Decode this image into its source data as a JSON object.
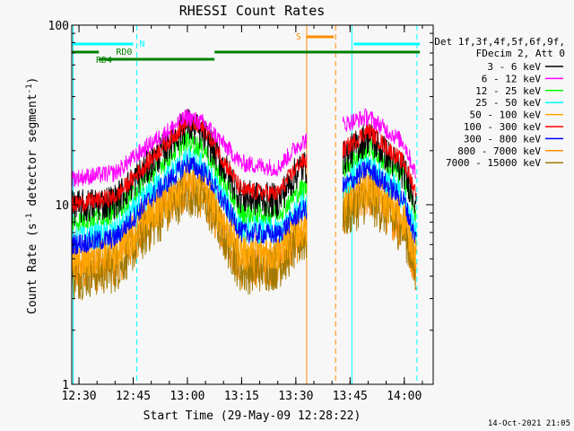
{
  "chart_data": {
    "type": "line",
    "title": "RHESSI Count Rates",
    "xlabel": "Start Time (29-May-09 12:28:22)",
    "ylabel": "Count Rate (s",
    "ylabel_sup1": "-1",
    "ylabel_mid": " detector segment",
    "ylabel_sup2": "-1",
    "ylabel_end": ")",
    "yscale": "log",
    "ylim": [
      1,
      100
    ],
    "xlim": [
      "12:28",
      "14:08"
    ],
    "x_ticks": [
      "12:30",
      "12:45",
      "13:00",
      "13:15",
      "13:30",
      "13:45",
      "14:00"
    ],
    "y_ticks": [
      "1",
      "10",
      "100"
    ],
    "data_gap": [
      "13:33",
      "13:43"
    ],
    "legend_header": [
      "Det 1f,3f,4f,5f,6f,9f,",
      "FDecim 2, Att 0"
    ],
    "legend_placement": "right",
    "series": [
      {
        "name": "3 - 6 keV",
        "color": "#000000",
        "x": [
          "12:28",
          "12:40",
          "12:50",
          "13:00",
          "13:05",
          "13:15",
          "13:25",
          "13:31",
          "13:43",
          "13:50",
          "14:00",
          "14:03"
        ],
        "values": [
          9.5,
          10.5,
          17,
          28,
          24,
          11,
          10.5,
          16,
          18,
          24,
          15,
          11
        ]
      },
      {
        "name": "6 - 12 keV",
        "color": "#ff00ff",
        "x": [
          "12:28",
          "12:40",
          "12:50",
          "13:00",
          "13:05",
          "13:15",
          "13:25",
          "13:31",
          "13:43",
          "13:50",
          "14:00",
          "14:03"
        ],
        "values": [
          14,
          15,
          22,
          31,
          28,
          17,
          16,
          22,
          28,
          31,
          22,
          15
        ]
      },
      {
        "name": "12 - 25 keV",
        "color": "#00ff00",
        "x": [
          "12:28",
          "12:40",
          "12:50",
          "13:00",
          "13:05",
          "13:15",
          "13:25",
          "13:31",
          "13:43",
          "13:50",
          "14:00",
          "14:03"
        ],
        "values": [
          8,
          9,
          15,
          23,
          20,
          9,
          9,
          12,
          16,
          21,
          14,
          9
        ]
      },
      {
        "name": "25 - 50 keV",
        "color": "#00ffff",
        "x": [
          "12:28",
          "12:40",
          "12:50",
          "13:00",
          "13:05",
          "13:15",
          "13:25",
          "13:31",
          "13:43",
          "13:50",
          "14:00",
          "14:03"
        ],
        "values": [
          6.5,
          7,
          12,
          18,
          16,
          7.5,
          7,
          10,
          13,
          17,
          11,
          7
        ]
      },
      {
        "name": "50 - 100 keV",
        "color": "#ffa500",
        "x": [
          "12:28",
          "12:40",
          "12:50",
          "13:00",
          "13:05",
          "13:15",
          "13:25",
          "13:31",
          "13:43",
          "13:50",
          "14:00",
          "14:03"
        ],
        "values": [
          5,
          5.5,
          9,
          14,
          12,
          5.5,
          5.5,
          7.5,
          10,
          13,
          8.5,
          5.5
        ]
      },
      {
        "name": "100 - 300 keV",
        "color": "#ff0000",
        "x": [
          "12:28",
          "12:40",
          "12:50",
          "13:00",
          "13:05",
          "13:15",
          "13:25",
          "13:31",
          "13:43",
          "13:50",
          "14:00",
          "14:03"
        ],
        "values": [
          10,
          11,
          18,
          29,
          26,
          12,
          11.5,
          17,
          20,
          26,
          17,
          12
        ]
      },
      {
        "name": "300 - 800 keV",
        "color": "#0000ff",
        "x": [
          "12:28",
          "12:40",
          "12:50",
          "13:00",
          "13:05",
          "13:15",
          "13:25",
          "13:31",
          "13:43",
          "13:50",
          "14:00",
          "14:03"
        ],
        "values": [
          6,
          6.5,
          11,
          17,
          15,
          7,
          6.8,
          9,
          12.5,
          16,
          10.5,
          6.5
        ]
      },
      {
        "name": "800 - 7000 keV",
        "color": "#ff8c00",
        "x": [
          "12:28",
          "12:40",
          "12:50",
          "13:00",
          "13:05",
          "13:15",
          "13:25",
          "13:31",
          "13:43",
          "13:50",
          "14:00",
          "14:03"
        ],
        "values": [
          4.2,
          4.6,
          8,
          12.5,
          11,
          4.5,
          4.8,
          6.5,
          9,
          11.5,
          7.5,
          4.5
        ]
      },
      {
        "name": "7000 - 15000 keV",
        "color": "#a07800",
        "x": [
          "12:28",
          "12:40",
          "12:50",
          "13:00",
          "13:05",
          "13:15",
          "13:25",
          "13:31",
          "13:43",
          "13:50",
          "14:00",
          "14:03"
        ],
        "values": [
          4.0,
          4.4,
          7.6,
          12,
          10.5,
          4.3,
          4.6,
          6.2,
          8.6,
          11,
          7.2,
          4.3
        ]
      }
    ],
    "annotations": [
      {
        "label": "N",
        "color": "#00ffff"
      },
      {
        "label": "RD0",
        "color": "#008000"
      },
      {
        "label": "RD4",
        "color": "#008000"
      },
      {
        "label": "S",
        "color": "#ff8c00"
      }
    ],
    "grid": false
  },
  "footer_timestamp": "14-Oct-2021 21:05"
}
